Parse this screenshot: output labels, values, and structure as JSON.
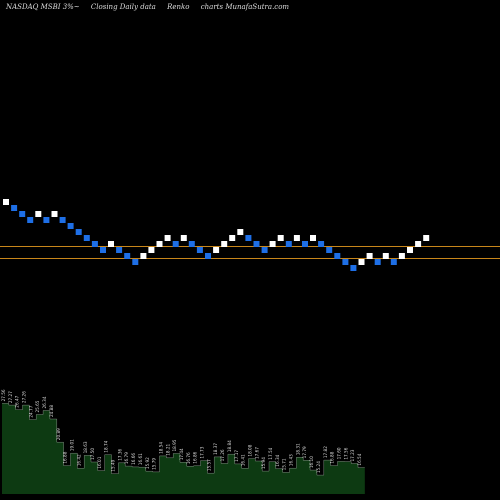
{
  "header": {
    "symbol": "NASDAQ MSBI 3%~",
    "description": "Closing Daily data",
    "chart_kind": "Renko",
    "source": "charts MunafaSutra.com"
  },
  "colors": {
    "background": "#000000",
    "up_brick": "#ffffff",
    "down_brick": "#1e6fe6",
    "level_line": "#c8861a",
    "volume_fill": "#0d3a12",
    "volume_outline": "#ffffff",
    "text": "#dddddd"
  },
  "chart_data": [
    {
      "type": "renko",
      "title": "",
      "brick_directions": [
        "up",
        "down",
        "down",
        "down",
        "up",
        "down",
        "up",
        "down",
        "down",
        "down",
        "down",
        "down",
        "down",
        "up",
        "down",
        "down",
        "down",
        "up",
        "up",
        "up",
        "up",
        "down",
        "up",
        "down",
        "down",
        "down",
        "up",
        "up",
        "up",
        "up",
        "down",
        "down",
        "down",
        "up",
        "up",
        "down",
        "up",
        "down",
        "up",
        "down",
        "down",
        "down",
        "down",
        "down",
        "up",
        "up",
        "down",
        "up",
        "down",
        "up",
        "up",
        "up",
        "up"
      ],
      "levels": [
        "upper",
        "lower"
      ]
    },
    {
      "type": "area",
      "title": "",
      "series_name": "",
      "bar_labels": [
        "27.56",
        "27.27",
        "26.47",
        "27.26",
        "24.77",
        "25.65",
        "26.34",
        "24.88",
        "20.89",
        "16.88",
        "19.01",
        "16.42",
        "18.63",
        "17.50",
        "16.01",
        "18.74",
        "15.49",
        "17.36",
        "16.79",
        "16.66",
        "16.61",
        "15.92",
        "15.79",
        "18.54",
        "18.21",
        "18.95",
        "17.44",
        "16.76",
        "16.86",
        "17.73",
        "15.57",
        "18.37",
        "17.26",
        "18.84",
        "17.17",
        "16.41",
        "18.08",
        "17.67",
        "15.94",
        "17.54",
        "16.34",
        "15.71",
        "16.43",
        "18.31",
        "17.79",
        "16.10",
        "15.24",
        "17.82",
        "16.88",
        "17.60",
        "17.56",
        "17.23",
        "16.54"
      ],
      "values": [
        27.56,
        27.27,
        26.47,
        27.26,
        24.77,
        25.65,
        26.34,
        24.88,
        20.89,
        16.88,
        19.01,
        16.42,
        18.63,
        17.5,
        16.01,
        18.74,
        15.49,
        17.36,
        16.79,
        16.66,
        16.61,
        15.92,
        15.79,
        18.54,
        18.21,
        18.95,
        17.44,
        16.76,
        16.86,
        17.73,
        15.57,
        18.37,
        17.26,
        18.84,
        17.17,
        16.41,
        18.08,
        17.67,
        15.94,
        17.54,
        16.34,
        15.71,
        16.43,
        18.31,
        17.79,
        16.1,
        15.24,
        17.82,
        16.88,
        17.6,
        17.56,
        17.23,
        16.54
      ],
      "ylim": [
        12,
        29
      ]
    }
  ]
}
